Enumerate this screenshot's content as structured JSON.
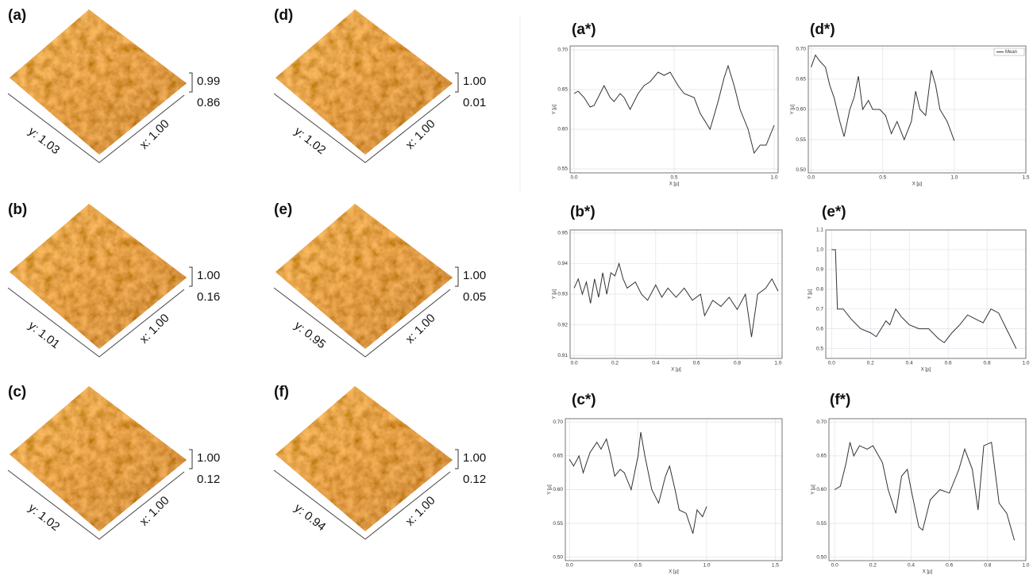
{
  "afm_panels": [
    {
      "label": "(a)",
      "y_axis": "y: 1.03",
      "x_axis": "x: 1.00",
      "z_max": "0.99",
      "z_min": "0.86"
    },
    {
      "label": "(b)",
      "y_axis": "y: 1.01",
      "x_axis": "x: 1.00",
      "z_max": "1.00",
      "z_min": "0.16"
    },
    {
      "label": "(c)",
      "y_axis": "y: 1.02",
      "x_axis": "x: 1.00",
      "z_max": "1.00",
      "z_min": "0.12"
    },
    {
      "label": "(d)",
      "y_axis": "y: 1.02",
      "x_axis": "x: 1.00",
      "z_max": "1.00",
      "z_min": "0.01"
    },
    {
      "label": "(e)",
      "y_axis": "y: 0.95",
      "x_axis": "x: 1.00",
      "z_max": "1.00",
      "z_min": "0.05"
    },
    {
      "label": "(f)",
      "y_axis": "y: 0.94",
      "x_axis": "x: 1.00",
      "z_max": "1.00",
      "z_min": "0.12"
    }
  ],
  "chart_data": [
    {
      "type": "line",
      "title": "(a*)",
      "x_label": "X [µ]",
      "y_label": "Y [µ]",
      "xlim": [
        -0.02,
        1.02
      ],
      "ylim": [
        0.545,
        0.705
      ],
      "xticks": [
        {
          "value": 0,
          "label": "0.0"
        },
        0.5,
        {
          "value": 1,
          "label": "1.0"
        }
      ],
      "yticks": [
        0.55,
        {
          "value": 0.6,
          "label": "0.60"
        },
        0.65,
        {
          "value": 0.7,
          "label": "0.70"
        }
      ],
      "x": [
        0,
        0.02,
        0.05,
        0.08,
        0.1,
        0.13,
        0.15,
        0.18,
        0.2,
        0.23,
        0.25,
        0.28,
        0.32,
        0.35,
        0.38,
        0.42,
        0.45,
        0.48,
        0.52,
        0.55,
        0.6,
        0.63,
        0.68,
        0.72,
        0.75,
        0.77,
        0.8,
        0.83,
        0.87,
        0.9,
        0.93,
        0.96,
        1.0
      ],
      "series": [
        {
          "color": "#333333",
          "values": [
            0.645,
            0.648,
            0.64,
            0.628,
            0.63,
            0.645,
            0.655,
            0.64,
            0.635,
            0.645,
            0.64,
            0.625,
            0.645,
            0.655,
            0.66,
            0.672,
            0.668,
            0.672,
            0.655,
            0.645,
            0.64,
            0.62,
            0.6,
            0.635,
            0.665,
            0.68,
            0.655,
            0.625,
            0.6,
            0.57,
            0.58,
            0.58,
            0.605
          ]
        }
      ]
    },
    {
      "type": "line",
      "title": "(d*)",
      "x_label": "X [µ]",
      "y_label": "Y [µ]",
      "xlim": [
        -0.02,
        1.5
      ],
      "ylim": [
        0.495,
        0.705
      ],
      "xticks": [
        {
          "value": 0,
          "label": "0.0"
        },
        0.5,
        {
          "value": 1,
          "label": "1.0"
        },
        1.5
      ],
      "yticks": [
        {
          "value": 0.5,
          "label": "0.50"
        },
        0.55,
        {
          "value": 0.6,
          "label": "0.60"
        },
        0.65,
        {
          "value": 0.7,
          "label": "0.70"
        }
      ],
      "legend": "top-right",
      "x": [
        0,
        0.03,
        0.06,
        0.1,
        0.13,
        0.16,
        0.2,
        0.23,
        0.27,
        0.3,
        0.33,
        0.36,
        0.4,
        0.43,
        0.48,
        0.52,
        0.56,
        0.6,
        0.65,
        0.7,
        0.73,
        0.76,
        0.8,
        0.84,
        0.87,
        0.9,
        0.95,
        1.0
      ],
      "series": [
        {
          "name": "Mean",
          "color": "#333333",
          "values": [
            0.67,
            0.69,
            0.68,
            0.67,
            0.64,
            0.62,
            0.58,
            0.555,
            0.6,
            0.62,
            0.655,
            0.6,
            0.615,
            0.6,
            0.6,
            0.59,
            0.56,
            0.58,
            0.55,
            0.58,
            0.63,
            0.6,
            0.59,
            0.665,
            0.64,
            0.6,
            0.58,
            0.548
          ]
        }
      ]
    },
    {
      "type": "line",
      "title": "(b*)",
      "x_label": "X [µ]",
      "y_label": "Y [µ]",
      "xlim": [
        -0.02,
        1.02
      ],
      "ylim": [
        0.909,
        0.951
      ],
      "xticks": [
        {
          "value": 0,
          "label": "0.0"
        },
        0.2,
        0.4,
        0.6,
        0.8,
        {
          "value": 1,
          "label": "1.0"
        }
      ],
      "yticks": [
        0.91,
        0.92,
        0.93,
        0.94,
        0.95
      ],
      "x": [
        0,
        0.02,
        0.04,
        0.06,
        0.08,
        0.1,
        0.12,
        0.14,
        0.16,
        0.18,
        0.2,
        0.22,
        0.24,
        0.26,
        0.3,
        0.33,
        0.36,
        0.4,
        0.43,
        0.46,
        0.5,
        0.54,
        0.58,
        0.62,
        0.64,
        0.68,
        0.72,
        0.76,
        0.8,
        0.84,
        0.87,
        0.9,
        0.94,
        0.97,
        1.0
      ],
      "series": [
        {
          "color": "#333333",
          "values": [
            0.932,
            0.935,
            0.93,
            0.934,
            0.927,
            0.935,
            0.929,
            0.937,
            0.93,
            0.937,
            0.936,
            0.94,
            0.935,
            0.932,
            0.934,
            0.93,
            0.928,
            0.933,
            0.929,
            0.932,
            0.929,
            0.932,
            0.928,
            0.93,
            0.923,
            0.928,
            0.926,
            0.929,
            0.925,
            0.93,
            0.916,
            0.93,
            0.932,
            0.935,
            0.931
          ]
        }
      ]
    },
    {
      "type": "line",
      "title": "(e*)",
      "x_label": "X [µ]",
      "y_label": "Y [µ]",
      "xlim": [
        -0.03,
        1.0
      ],
      "ylim": [
        0.45,
        1.1
      ],
      "xticks": [
        {
          "value": 0,
          "label": "0.0"
        },
        0.2,
        0.4,
        0.6,
        0.8,
        {
          "value": 1,
          "label": "1.0"
        }
      ],
      "yticks": [
        0.5,
        0.6,
        0.7,
        0.8,
        0.9,
        {
          "value": 1,
          "label": "1.0"
        },
        1.1
      ],
      "x": [
        0,
        0.02,
        0.03,
        0.06,
        0.1,
        0.15,
        0.2,
        0.23,
        0.28,
        0.3,
        0.33,
        0.36,
        0.4,
        0.45,
        0.5,
        0.55,
        0.58,
        0.62,
        0.66,
        0.7,
        0.74,
        0.78,
        0.82,
        0.86,
        0.9,
        0.95
      ],
      "series": [
        {
          "color": "#333333",
          "values": [
            1.0,
            1.0,
            0.7,
            0.7,
            0.65,
            0.6,
            0.58,
            0.56,
            0.64,
            0.62,
            0.7,
            0.66,
            0.62,
            0.6,
            0.6,
            0.55,
            0.53,
            0.58,
            0.62,
            0.67,
            0.65,
            0.63,
            0.7,
            0.68,
            0.6,
            0.5
          ]
        }
      ]
    },
    {
      "type": "line",
      "title": "(c*)",
      "x_label": "X [µ]",
      "y_label": "Y [µ]",
      "xlim": [
        -0.03,
        1.55
      ],
      "ylim": [
        0.495,
        0.705
      ],
      "xticks": [
        {
          "value": 0,
          "label": "0.0"
        },
        0.5,
        {
          "value": 1,
          "label": "1.0"
        },
        1.5
      ],
      "yticks": [
        {
          "value": 0.5,
          "label": "0.50"
        },
        0.55,
        {
          "value": 0.6,
          "label": "0.60"
        },
        0.65,
        {
          "value": 0.7,
          "label": "0.70"
        }
      ],
      "x": [
        0,
        0.03,
        0.07,
        0.1,
        0.15,
        0.2,
        0.23,
        0.27,
        0.3,
        0.33,
        0.37,
        0.4,
        0.45,
        0.5,
        0.52,
        0.55,
        0.6,
        0.65,
        0.7,
        0.73,
        0.77,
        0.8,
        0.85,
        0.9,
        0.93,
        0.97,
        1.0
      ],
      "series": [
        {
          "color": "#333333",
          "values": [
            0.645,
            0.635,
            0.65,
            0.625,
            0.655,
            0.67,
            0.66,
            0.675,
            0.65,
            0.62,
            0.63,
            0.625,
            0.6,
            0.65,
            0.685,
            0.65,
            0.6,
            0.58,
            0.62,
            0.635,
            0.6,
            0.57,
            0.565,
            0.535,
            0.57,
            0.56,
            0.575
          ]
        }
      ]
    },
    {
      "type": "line",
      "title": "(f*)",
      "x_label": "X [µ]",
      "y_label": "Y [µ]",
      "xlim": [
        -0.03,
        1.0
      ],
      "ylim": [
        0.495,
        0.705
      ],
      "xticks": [
        {
          "value": 0,
          "label": "0.0"
        },
        0.2,
        0.4,
        0.6,
        0.8,
        {
          "value": 1,
          "label": "1.0"
        }
      ],
      "yticks": [
        {
          "value": 0.5,
          "label": "0.50"
        },
        0.55,
        {
          "value": 0.6,
          "label": "0.60"
        },
        0.65,
        {
          "value": 0.7,
          "label": "0.70"
        }
      ],
      "x": [
        0,
        0.03,
        0.06,
        0.08,
        0.1,
        0.13,
        0.17,
        0.2,
        0.25,
        0.28,
        0.32,
        0.35,
        0.38,
        0.4,
        0.44,
        0.46,
        0.5,
        0.55,
        0.6,
        0.65,
        0.68,
        0.72,
        0.75,
        0.78,
        0.82,
        0.86,
        0.9,
        0.94
      ],
      "series": [
        {
          "color": "#333333",
          "values": [
            0.6,
            0.605,
            0.64,
            0.67,
            0.65,
            0.665,
            0.66,
            0.665,
            0.64,
            0.6,
            0.565,
            0.62,
            0.63,
            0.6,
            0.545,
            0.54,
            0.585,
            0.6,
            0.595,
            0.63,
            0.66,
            0.63,
            0.57,
            0.665,
            0.67,
            0.58,
            0.565,
            0.525
          ]
        }
      ]
    }
  ]
}
